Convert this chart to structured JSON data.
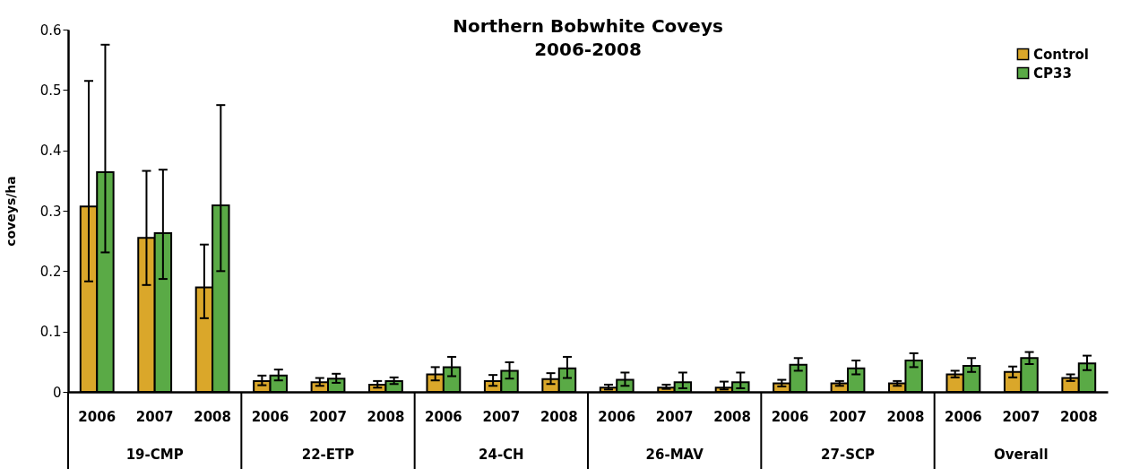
{
  "chart_data": {
    "type": "bar",
    "title": "Northern Bobwhite Coveys",
    "subtitle": "2006-2008",
    "ylabel": "coveys/ha",
    "categories": [
      "2006",
      "2007",
      "2008",
      "2006",
      "2007",
      "2008",
      "2006",
      "2007",
      "2008",
      "2006",
      "2007",
      "2008",
      "2006",
      "2007",
      "2008",
      "2006",
      "2007",
      "2008"
    ],
    "annotations": [
      "19-CMP",
      "22-ETP",
      "24-CH",
      "26-MAV",
      "27-SCP",
      "Overall"
    ],
    "series": [
      {
        "name": "Control",
        "color": "#daa72a",
        "values": [
          0.307,
          0.255,
          0.173,
          0.018,
          0.016,
          0.012,
          0.029,
          0.018,
          0.021,
          0.007,
          0.007,
          0.007,
          0.014,
          0.014,
          0.014,
          0.029,
          0.033,
          0.023
        ],
        "errors": [
          [
            0.183,
            0.515
          ],
          [
            0.177,
            0.366
          ],
          [
            0.122,
            0.244
          ],
          [
            0.011,
            0.027
          ],
          [
            0.01,
            0.023
          ],
          [
            0.007,
            0.018
          ],
          [
            0.019,
            0.041
          ],
          [
            0.01,
            0.028
          ],
          [
            0.013,
            0.031
          ],
          [
            0.004,
            0.012
          ],
          [
            0.005,
            0.012
          ],
          [
            0.004,
            0.017
          ],
          [
            0.009,
            0.02
          ],
          [
            0.01,
            0.018
          ],
          [
            0.01,
            0.018
          ],
          [
            0.024,
            0.035
          ],
          [
            0.024,
            0.042
          ],
          [
            0.018,
            0.029
          ]
        ]
      },
      {
        "name": "CP33",
        "color": "#5aaa46",
        "values": [
          0.364,
          0.263,
          0.309,
          0.027,
          0.022,
          0.018,
          0.041,
          0.035,
          0.039,
          0.02,
          0.016,
          0.016,
          0.045,
          0.039,
          0.052,
          0.043,
          0.056,
          0.047
        ],
        "errors": [
          [
            0.231,
            0.575
          ],
          [
            0.187,
            0.368
          ],
          [
            0.2,
            0.475
          ],
          [
            0.019,
            0.037
          ],
          [
            0.015,
            0.03
          ],
          [
            0.013,
            0.024
          ],
          [
            0.026,
            0.058
          ],
          [
            0.022,
            0.049
          ],
          [
            0.023,
            0.058
          ],
          [
            0.01,
            0.032
          ],
          [
            0.006,
            0.032
          ],
          [
            0.006,
            0.032
          ],
          [
            0.035,
            0.056
          ],
          [
            0.029,
            0.052
          ],
          [
            0.041,
            0.064
          ],
          [
            0.033,
            0.056
          ],
          [
            0.046,
            0.066
          ],
          [
            0.036,
            0.06
          ]
        ]
      }
    ],
    "ylim": [
      0,
      0.6
    ],
    "yticks": [
      0,
      0.1,
      0.2,
      0.3,
      0.4,
      0.5,
      0.6
    ],
    "grid": false,
    "legend": "top right"
  }
}
